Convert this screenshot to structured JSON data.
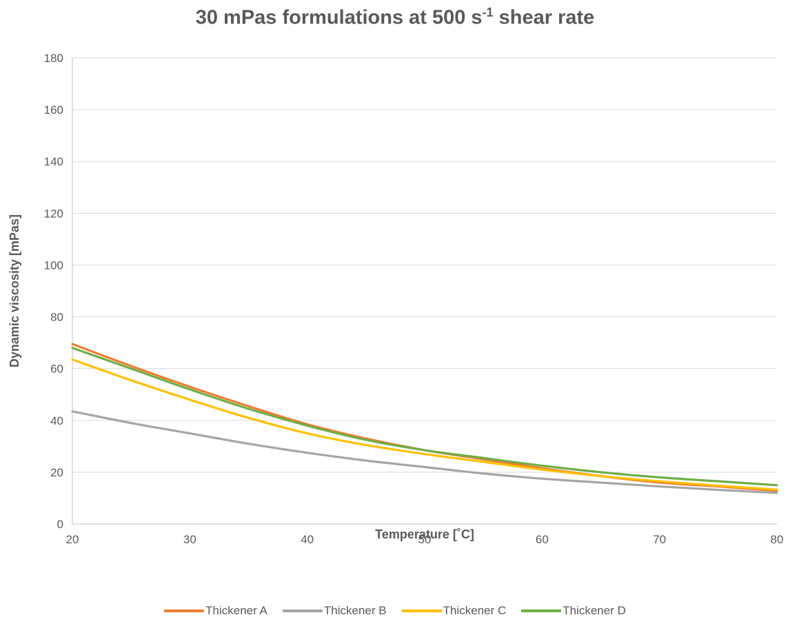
{
  "chart_data": {
    "type": "line",
    "title_main": "30 mPas formulations at 500 s",
    "title_sup": "-1",
    "title_end": " shear rate",
    "xlabel": "Temperature [˚C]",
    "ylabel": "Dynamic viscosity [mPas]",
    "xlim": [
      20,
      80
    ],
    "ylim": [
      0,
      180
    ],
    "xticks": [
      20,
      30,
      40,
      50,
      60,
      70,
      80
    ],
    "yticks": [
      0,
      20,
      40,
      60,
      80,
      100,
      120,
      140,
      160,
      180
    ],
    "grid": "horizontal",
    "legend_position": "bottom",
    "series": [
      {
        "name": "Thickener A",
        "color": "#ED7D31",
        "x": [
          20,
          25,
          30,
          35,
          40,
          45,
          50,
          55,
          60,
          65,
          70,
          75,
          80
        ],
        "y": [
          69.5,
          61,
          53,
          45.5,
          38.5,
          33,
          28.5,
          25,
          21.5,
          18.5,
          16,
          14.5,
          12.8
        ]
      },
      {
        "name": "Thickener B",
        "color": "#A5A5A5",
        "x": [
          20,
          25,
          30,
          35,
          40,
          45,
          50,
          55,
          60,
          65,
          70,
          75,
          80
        ],
        "y": [
          43.5,
          39,
          35,
          31,
          27.5,
          24.5,
          22,
          19.5,
          17.5,
          16,
          14.5,
          13.2,
          12
        ]
      },
      {
        "name": "Thickener C",
        "color": "#FFC000",
        "x": [
          20,
          25,
          30,
          35,
          40,
          45,
          50,
          55,
          60,
          65,
          70,
          75,
          80
        ],
        "y": [
          63.5,
          55.5,
          48,
          41,
          35,
          30.5,
          27,
          24,
          21,
          18.5,
          16.5,
          14.8,
          13.3
        ]
      },
      {
        "name": "Thickener D",
        "color": "#70AD47",
        "x": [
          20,
          25,
          30,
          35,
          40,
          45,
          50,
          55,
          60,
          65,
          70,
          75,
          80
        ],
        "y": [
          68,
          60,
          52,
          44.5,
          38,
          32.5,
          28.5,
          25.5,
          22.5,
          20,
          18,
          16.5,
          15
        ]
      }
    ]
  }
}
